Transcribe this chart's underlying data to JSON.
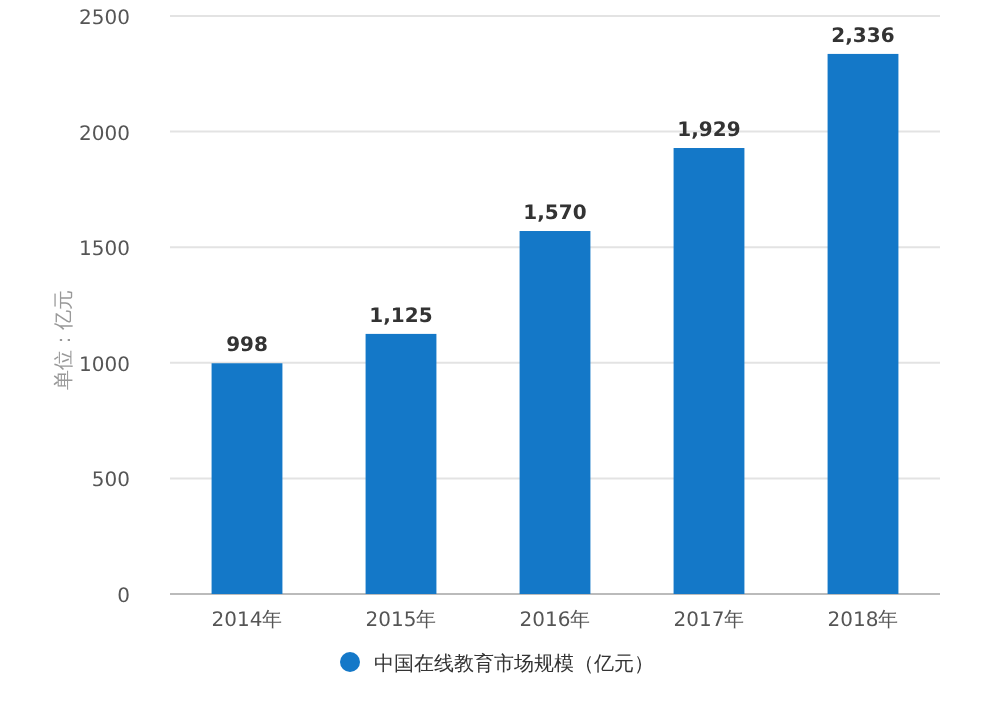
{
  "chart_data": {
    "type": "bar",
    "ylabel": "单位：亿元",
    "categories": [
      "2014年",
      "2015年",
      "2016年",
      "2017年",
      "2018年"
    ],
    "series": [
      {
        "name": "中国在线教育市场规模（亿元）",
        "color": "#1478c8",
        "values": [
          998,
          1125,
          1570,
          1929,
          2336
        ],
        "value_labels": [
          "998",
          "1,125",
          "1,570",
          "1,929",
          "2,336"
        ]
      }
    ],
    "ylim": [
      0,
      2500
    ],
    "yticks": [
      0,
      500,
      1000,
      1500,
      2000,
      2500
    ],
    "grid": "y",
    "legend": "bottom"
  }
}
